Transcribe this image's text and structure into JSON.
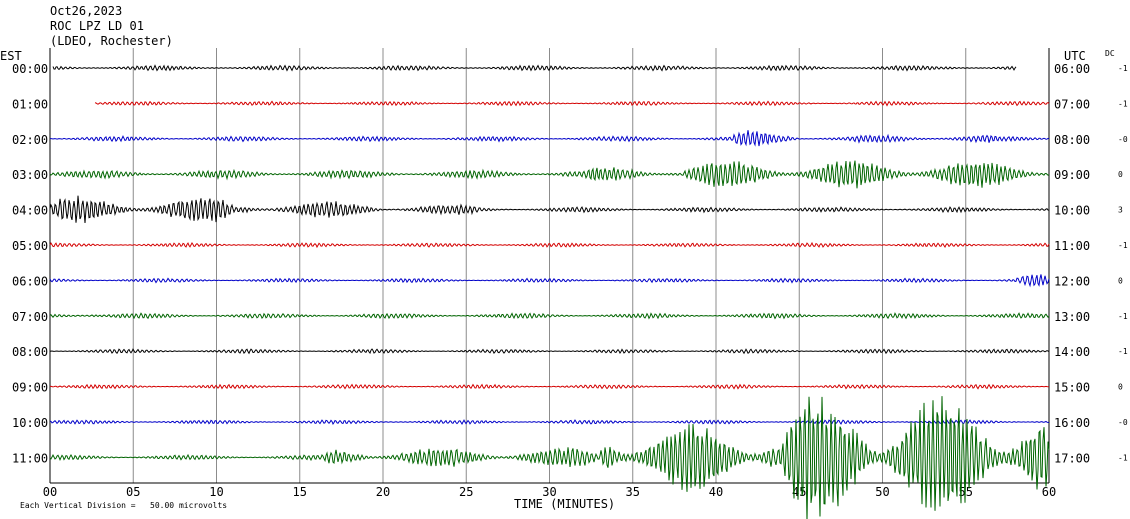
{
  "header": {
    "date": "Oct26,2023",
    "station": "ROC LPZ LD 01",
    "network": "(LDEO, Rochester)"
  },
  "left_axis_title": "EST",
  "right_axis_title": "UTC",
  "dc_title": "DC",
  "footer": {
    "xlabel": "TIME (MINUTES)",
    "scale_note": "Each Vertical Division =   50.00 microvolts"
  },
  "chart_data": {
    "type": "line",
    "x_unit": "minutes",
    "xlim": [
      0,
      60
    ],
    "x_ticks": [
      "00",
      "05",
      "10",
      "15",
      "20",
      "25",
      "30",
      "35",
      "40",
      "45",
      "50",
      "55",
      "60"
    ],
    "color_cycle": [
      "#000000",
      "#d40000",
      "#0000c8",
      "#006400"
    ],
    "rows": [
      {
        "est": "00:00",
        "utc": "06:00",
        "dc": "-1",
        "color": "#000000",
        "x_start": 0.2,
        "x_end": 58.0,
        "base_amp": 0.15,
        "bursts": []
      },
      {
        "est": "01:00",
        "utc": "07:00",
        "dc": "-1",
        "color": "#d40000",
        "x_start": 2.7,
        "x_end": 60,
        "base_amp": 0.12,
        "bursts": []
      },
      {
        "est": "02:00",
        "utc": "08:00",
        "dc": "-0",
        "color": "#0000c8",
        "x_start": 0,
        "x_end": 60,
        "base_amp": 0.15,
        "bursts": [
          {
            "from": 41,
            "to": 45,
            "amp": 0.5
          },
          {
            "from": 48,
            "to": 57,
            "amp": 0.25
          }
        ]
      },
      {
        "est": "03:00",
        "utc": "09:00",
        "dc": "0",
        "color": "#006400",
        "x_start": 0,
        "x_end": 60,
        "base_amp": 0.25,
        "bursts": [
          {
            "from": 32,
            "to": 38,
            "amp": 0.45
          },
          {
            "from": 38,
            "to": 60,
            "amp": 0.85
          }
        ]
      },
      {
        "est": "04:00",
        "utc": "10:00",
        "dc": "3",
        "color": "#000000",
        "x_start": 0,
        "x_end": 60,
        "base_amp": 0.15,
        "bursts": [
          {
            "from": 0,
            "to": 11,
            "amp": 0.8
          },
          {
            "from": 11,
            "to": 20,
            "amp": 0.5
          },
          {
            "from": 20,
            "to": 26,
            "amp": 0.3
          }
        ]
      },
      {
        "est": "05:00",
        "utc": "11:00",
        "dc": "-1",
        "color": "#d40000",
        "x_start": 0,
        "x_end": 60,
        "base_amp": 0.12,
        "bursts": []
      },
      {
        "est": "06:00",
        "utc": "12:00",
        "dc": "0",
        "color": "#0000c8",
        "x_start": 0,
        "x_end": 60,
        "base_amp": 0.12,
        "bursts": [
          {
            "from": 58,
            "to": 60,
            "amp": 0.4
          }
        ]
      },
      {
        "est": "07:00",
        "utc": "13:00",
        "dc": "-1",
        "color": "#006400",
        "x_start": 0,
        "x_end": 60,
        "base_amp": 0.15,
        "bursts": [
          {
            "from": 0,
            "to": 3,
            "amp": 0.3
          }
        ]
      },
      {
        "est": "08:00",
        "utc": "14:00",
        "dc": "-1",
        "color": "#000000",
        "x_start": 0,
        "x_end": 60,
        "base_amp": 0.12,
        "bursts": []
      },
      {
        "est": "09:00",
        "utc": "15:00",
        "dc": "0",
        "color": "#d40000",
        "x_start": 0,
        "x_end": 60,
        "base_amp": 0.12,
        "bursts": []
      },
      {
        "est": "10:00",
        "utc": "16:00",
        "dc": "-0",
        "color": "#0000c8",
        "x_start": 0,
        "x_end": 60,
        "base_amp": 0.12,
        "bursts": []
      },
      {
        "est": "11:00",
        "utc": "17:00",
        "dc": "-1",
        "color": "#006400",
        "x_start": 0,
        "x_end": 60,
        "base_amp": 0.15,
        "bursts": [
          {
            "from": 16.5,
            "to": 33,
            "amp": 0.6
          },
          {
            "from": 33,
            "to": 44,
            "amp": 2.2
          },
          {
            "from": 44,
            "to": 60,
            "amp": 4.0
          }
        ]
      }
    ]
  }
}
